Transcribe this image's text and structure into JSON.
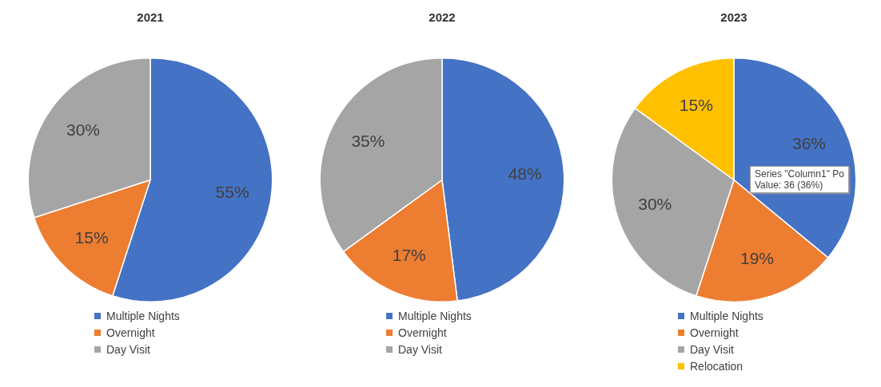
{
  "chart_data": [
    {
      "type": "pie",
      "title": "2021",
      "categories": [
        "Multiple Nights",
        "Overnight",
        "Day Visit"
      ],
      "values": [
        55,
        15,
        30
      ],
      "colors": [
        "#4472c4",
        "#ed7d31",
        "#a5a5a5"
      ],
      "value_labels": [
        "55%",
        "15%",
        "30%"
      ],
      "legend": "bottom"
    },
    {
      "type": "pie",
      "title": "2022",
      "categories": [
        "Multiple Nights",
        "Overnight",
        "Day Visit"
      ],
      "values": [
        48,
        17,
        35
      ],
      "colors": [
        "#4472c4",
        "#ed7d31",
        "#a5a5a5"
      ],
      "value_labels": [
        "48%",
        "17%",
        "35%"
      ],
      "legend": "bottom"
    },
    {
      "type": "pie",
      "title": "2023",
      "categories": [
        "Multiple Nights",
        "Overnight",
        "Day Visit",
        "Relocation"
      ],
      "values": [
        36,
        19,
        30,
        15
      ],
      "colors": [
        "#4472c4",
        "#ed7d31",
        "#a5a5a5",
        "#ffc000"
      ],
      "value_labels": [
        "36%",
        "19%",
        "30%",
        "15%"
      ],
      "legend": "bottom",
      "annotations": [
        "Series \"Column1\" Po",
        "Value: 36 (36%)"
      ]
    }
  ]
}
